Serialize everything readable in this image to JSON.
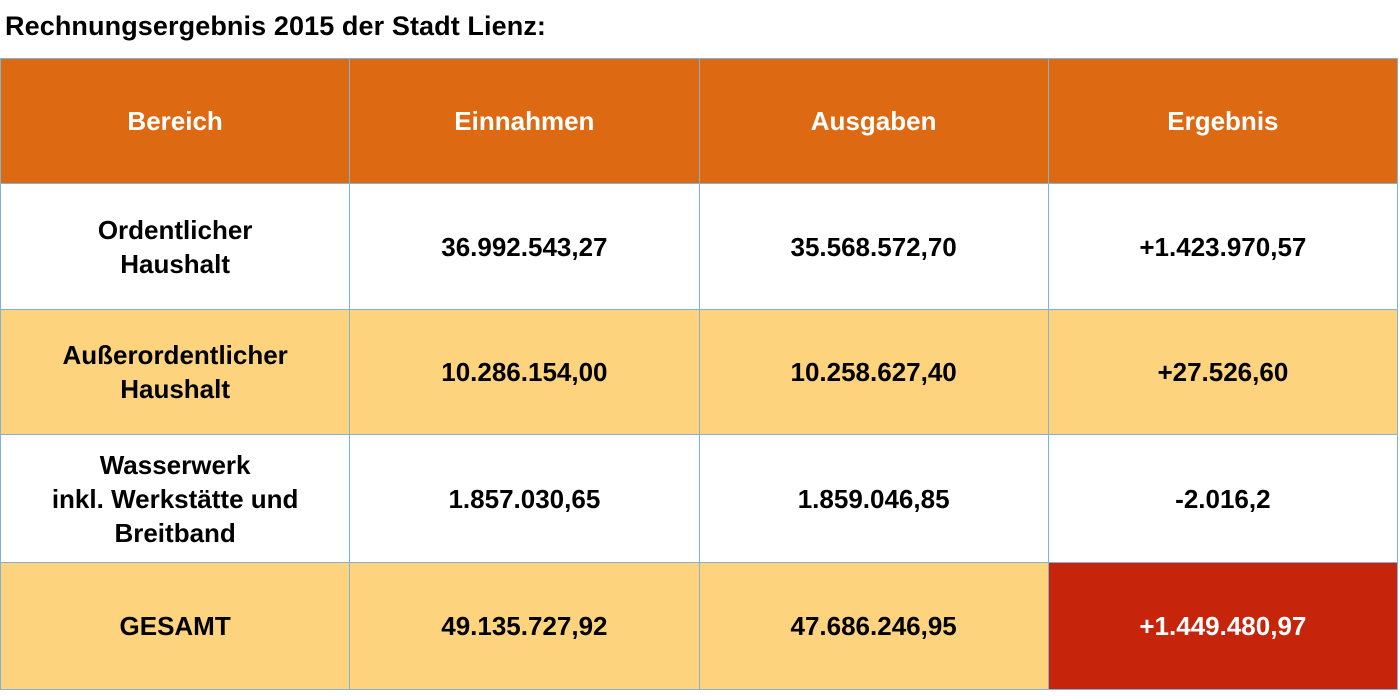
{
  "title": "Rechnungsergebnis 2015 der Stadt Lienz:",
  "colors": {
    "header_bg": "#dd6a12",
    "header_text": "#ffffff",
    "row_white": "#ffffff",
    "row_highlight": "#fdd37e",
    "total_result_bg": "#c6240b",
    "total_result_text": "#ffffff",
    "grid_line": "#7fb3d8"
  },
  "chart_data": {
    "type": "table",
    "title": "Rechnungsergebnis 2015 der Stadt Lienz:",
    "columns": [
      "Bereich",
      "Einnahmen",
      "Ausgaben",
      "Ergebnis"
    ],
    "rows": [
      {
        "bereich_lines": [
          "Ordentlicher",
          "Haushalt"
        ],
        "einnahmen": "36.992.543,27",
        "ausgaben": "35.568.572,70",
        "ergebnis": "+1.423.970,57",
        "style": "white"
      },
      {
        "bereich_lines": [
          "Außerordentlicher",
          "Haushalt"
        ],
        "einnahmen": "10.286.154,00",
        "ausgaben": "10.258.627,40",
        "ergebnis": "+27.526,60",
        "style": "highlight"
      },
      {
        "bereich_lines": [
          "Wasserwerk",
          "inkl. Werkstätte und",
          "Breitband"
        ],
        "einnahmen": "1.857.030,65",
        "ausgaben": "1.859.046,85",
        "ergebnis": "-2.016,2",
        "style": "white"
      },
      {
        "bereich_lines": [
          "GESAMT"
        ],
        "einnahmen": "49.135.727,92",
        "ausgaben": "47.686.246,95",
        "ergebnis": "+1.449.480,97",
        "style": "highlight",
        "ergebnis_emphasis": true
      }
    ]
  }
}
